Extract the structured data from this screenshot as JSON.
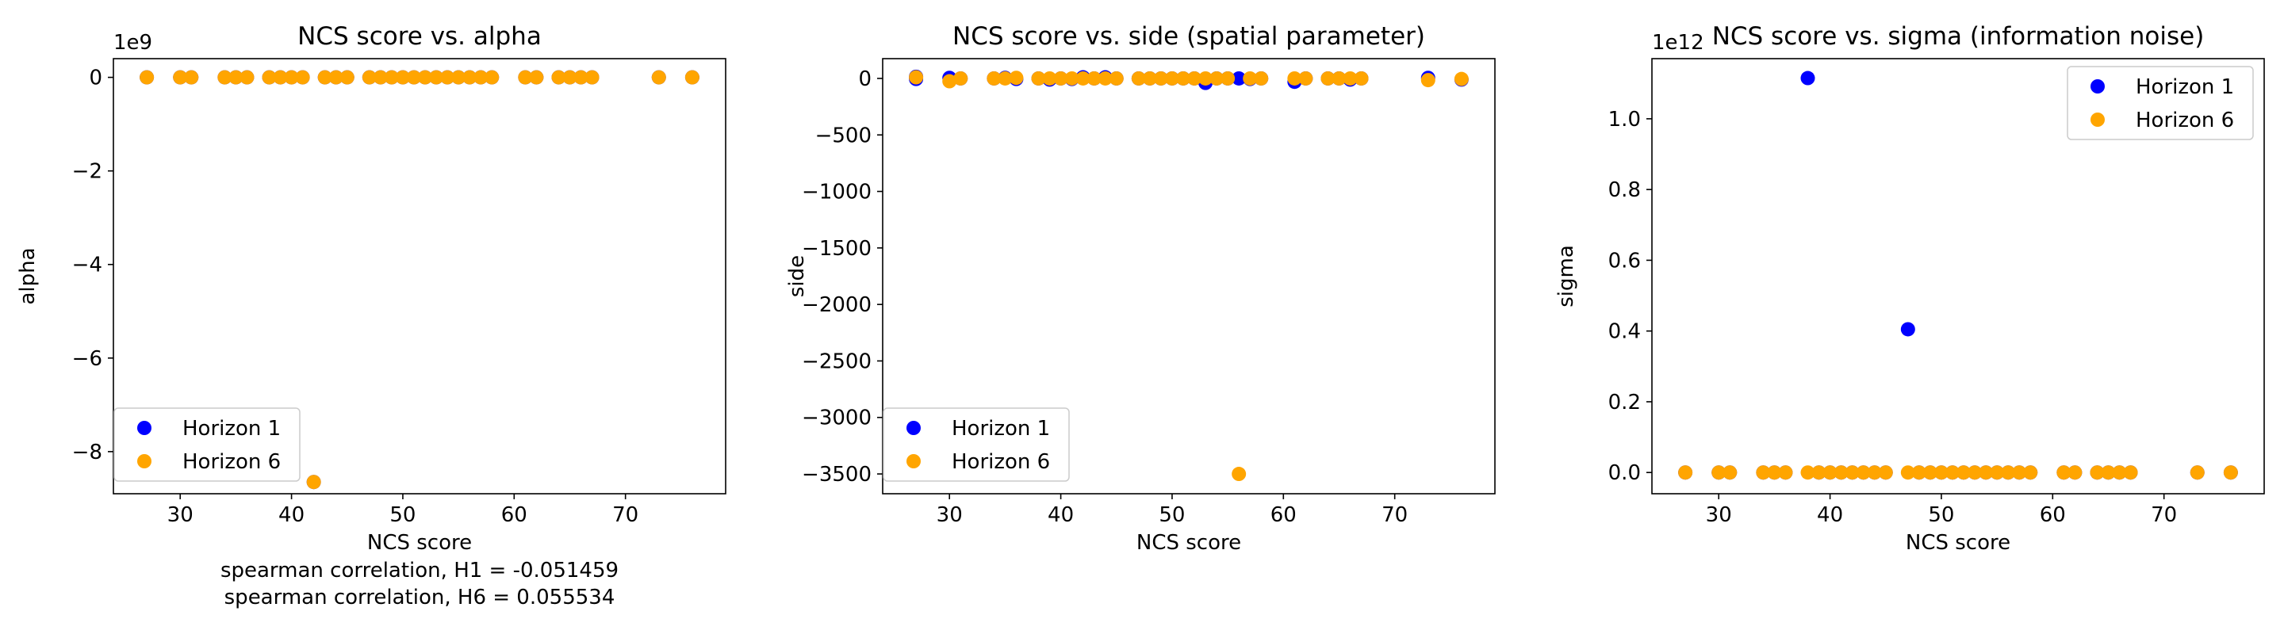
{
  "legend_labels": [
    "Horizon 1",
    "Horizon 6"
  ],
  "colors": {
    "horizon1": "#0000ff",
    "horizon6": "#ffa500"
  },
  "chart_data": [
    {
      "type": "scatter",
      "title": "NCS score vs. alpha",
      "xlabel": "NCS score",
      "ylabel": "alpha",
      "footer_lines": [
        "spearman correlation, H1 = -0.051459",
        "spearman correlation, H6 = 0.055534"
      ],
      "offset_label": "1e9",
      "xlim": [
        24,
        79
      ],
      "ylim": [
        -8.9,
        0.4
      ],
      "xticks": [
        30,
        40,
        50,
        60,
        70
      ],
      "xtick_labels": [
        "30",
        "40",
        "50",
        "60",
        "70"
      ],
      "yticks": [
        0,
        -2,
        -4,
        -6,
        -8
      ],
      "ytick_labels": [
        "0",
        "−2",
        "−4",
        "−6",
        "−8"
      ],
      "legend": "lower-left",
      "grid": false,
      "series": [
        {
          "name": "Horizon 1",
          "points": [
            [
              27,
              0
            ],
            [
              30,
              0
            ],
            [
              31,
              0
            ],
            [
              34,
              0
            ],
            [
              35,
              0
            ],
            [
              36,
              0
            ],
            [
              38,
              0
            ],
            [
              39,
              0
            ],
            [
              40,
              0
            ],
            [
              41,
              0
            ],
            [
              42,
              -8.65
            ],
            [
              43,
              0
            ],
            [
              44,
              0
            ],
            [
              45,
              0
            ],
            [
              47,
              0
            ],
            [
              48,
              0
            ],
            [
              49,
              0
            ],
            [
              50,
              0
            ],
            [
              51,
              0
            ],
            [
              52,
              0
            ],
            [
              53,
              0
            ],
            [
              54,
              0
            ],
            [
              55,
              0
            ],
            [
              56,
              0
            ],
            [
              57,
              0
            ],
            [
              58,
              0
            ],
            [
              61,
              0
            ],
            [
              62,
              0
            ],
            [
              64,
              0
            ],
            [
              65,
              0
            ],
            [
              66,
              0
            ],
            [
              67,
              0
            ],
            [
              73,
              0
            ],
            [
              76,
              0
            ]
          ]
        },
        {
          "name": "Horizon 6",
          "points": [
            [
              27,
              0
            ],
            [
              30,
              0
            ],
            [
              31,
              0
            ],
            [
              34,
              0
            ],
            [
              35,
              0
            ],
            [
              36,
              0
            ],
            [
              38,
              0
            ],
            [
              39,
              0
            ],
            [
              40,
              0
            ],
            [
              41,
              0
            ],
            [
              42,
              -8.65
            ],
            [
              43,
              0
            ],
            [
              44,
              0
            ],
            [
              45,
              0
            ],
            [
              47,
              0
            ],
            [
              48,
              0
            ],
            [
              49,
              0
            ],
            [
              50,
              0
            ],
            [
              51,
              0
            ],
            [
              52,
              0
            ],
            [
              53,
              0
            ],
            [
              54,
              0
            ],
            [
              55,
              0
            ],
            [
              56,
              0
            ],
            [
              57,
              0
            ],
            [
              58,
              0
            ],
            [
              61,
              0
            ],
            [
              62,
              0
            ],
            [
              64,
              0
            ],
            [
              65,
              0
            ],
            [
              66,
              0
            ],
            [
              67,
              0
            ],
            [
              73,
              0
            ],
            [
              76,
              0
            ]
          ]
        }
      ]
    },
    {
      "type": "scatter",
      "title": "NCS score vs. side (spatial parameter)",
      "xlabel": "NCS score",
      "ylabel": "side",
      "xlim": [
        24,
        79
      ],
      "ylim": [
        -3675,
        175
      ],
      "xticks": [
        30,
        40,
        50,
        60,
        70
      ],
      "xtick_labels": [
        "30",
        "40",
        "50",
        "60",
        "70"
      ],
      "yticks": [
        0,
        -500,
        -1000,
        -1500,
        -2000,
        -2500,
        -3000,
        -3500
      ],
      "ytick_labels": [
        "0",
        "−500",
        "−1000",
        "−1500",
        "−2000",
        "−2500",
        "−3000",
        "−3500"
      ],
      "legend": "lower-left",
      "grid": false,
      "series": [
        {
          "name": "Horizon 1",
          "points": [
            [
              27,
              -5
            ],
            [
              27,
              15
            ],
            [
              30,
              5
            ],
            [
              31,
              0
            ],
            [
              34,
              0
            ],
            [
              35,
              5
            ],
            [
              36,
              -5
            ],
            [
              38,
              0
            ],
            [
              39,
              -10
            ],
            [
              40,
              0
            ],
            [
              41,
              -5
            ],
            [
              42,
              10
            ],
            [
              43,
              0
            ],
            [
              44,
              10
            ],
            [
              45,
              0
            ],
            [
              47,
              0
            ],
            [
              48,
              0
            ],
            [
              49,
              0
            ],
            [
              50,
              0
            ],
            [
              51,
              0
            ],
            [
              52,
              0
            ],
            [
              53,
              -40
            ],
            [
              54,
              0
            ],
            [
              55,
              0
            ],
            [
              56,
              0
            ],
            [
              57,
              -5
            ],
            [
              58,
              0
            ],
            [
              61,
              -30
            ],
            [
              62,
              0
            ],
            [
              64,
              0
            ],
            [
              65,
              0
            ],
            [
              66,
              -10
            ],
            [
              67,
              0
            ],
            [
              73,
              5
            ],
            [
              76,
              -10
            ]
          ]
        },
        {
          "name": "Horizon 6",
          "points": [
            [
              27,
              10
            ],
            [
              30,
              -25
            ],
            [
              31,
              0
            ],
            [
              34,
              0
            ],
            [
              35,
              0
            ],
            [
              36,
              5
            ],
            [
              38,
              0
            ],
            [
              39,
              0
            ],
            [
              40,
              0
            ],
            [
              41,
              0
            ],
            [
              42,
              0
            ],
            [
              43,
              0
            ],
            [
              44,
              0
            ],
            [
              45,
              0
            ],
            [
              47,
              0
            ],
            [
              48,
              0
            ],
            [
              49,
              0
            ],
            [
              50,
              0
            ],
            [
              51,
              0
            ],
            [
              52,
              0
            ],
            [
              53,
              0
            ],
            [
              54,
              0
            ],
            [
              55,
              0
            ],
            [
              56,
              -3500
            ],
            [
              57,
              0
            ],
            [
              58,
              0
            ],
            [
              61,
              0
            ],
            [
              62,
              0
            ],
            [
              64,
              0
            ],
            [
              65,
              0
            ],
            [
              66,
              0
            ],
            [
              67,
              0
            ],
            [
              73,
              -15
            ],
            [
              76,
              -5
            ]
          ]
        }
      ]
    },
    {
      "type": "scatter",
      "title": "NCS score vs. sigma (information noise)",
      "xlabel": "NCS score",
      "ylabel": "sigma",
      "offset_label": "1e12",
      "xlim": [
        24,
        79
      ],
      "ylim": [
        -0.06,
        1.17
      ],
      "xticks": [
        30,
        40,
        50,
        60,
        70
      ],
      "xtick_labels": [
        "30",
        "40",
        "50",
        "60",
        "70"
      ],
      "yticks": [
        0,
        0.2,
        0.4,
        0.6,
        0.8,
        1.0
      ],
      "ytick_labels": [
        "0.0",
        "0.2",
        "0.4",
        "0.6",
        "0.8",
        "1.0"
      ],
      "legend": "upper-right",
      "grid": false,
      "series": [
        {
          "name": "Horizon 1",
          "points": [
            [
              38,
              1.115
            ],
            [
              47,
              0.405
            ],
            [
              27,
              0
            ],
            [
              30,
              0
            ],
            [
              31,
              0
            ],
            [
              34,
              0
            ],
            [
              35,
              0
            ],
            [
              36,
              0
            ],
            [
              39,
              0
            ],
            [
              40,
              0
            ],
            [
              41,
              0
            ],
            [
              42,
              0
            ],
            [
              43,
              0
            ],
            [
              44,
              0
            ],
            [
              45,
              0
            ],
            [
              48,
              0
            ],
            [
              49,
              0
            ],
            [
              50,
              0
            ],
            [
              51,
              0
            ],
            [
              52,
              0
            ],
            [
              53,
              0
            ],
            [
              54,
              0
            ],
            [
              55,
              0
            ],
            [
              56,
              0
            ],
            [
              57,
              0
            ],
            [
              58,
              0
            ],
            [
              61,
              0
            ],
            [
              62,
              0
            ],
            [
              64,
              0
            ],
            [
              65,
              0
            ],
            [
              66,
              0
            ],
            [
              67,
              0
            ],
            [
              73,
              0
            ],
            [
              76,
              0
            ]
          ]
        },
        {
          "name": "Horizon 6",
          "points": [
            [
              27,
              0
            ],
            [
              30,
              0
            ],
            [
              31,
              0
            ],
            [
              34,
              0
            ],
            [
              35,
              0
            ],
            [
              36,
              0
            ],
            [
              38,
              0
            ],
            [
              39,
              0
            ],
            [
              40,
              0
            ],
            [
              41,
              0
            ],
            [
              42,
              0
            ],
            [
              43,
              0
            ],
            [
              44,
              0
            ],
            [
              45,
              0
            ],
            [
              47,
              0
            ],
            [
              48,
              0
            ],
            [
              49,
              0
            ],
            [
              50,
              0
            ],
            [
              51,
              0
            ],
            [
              52,
              0
            ],
            [
              53,
              0
            ],
            [
              54,
              0
            ],
            [
              55,
              0
            ],
            [
              56,
              0
            ],
            [
              57,
              0
            ],
            [
              58,
              0
            ],
            [
              61,
              0
            ],
            [
              62,
              0
            ],
            [
              64,
              0
            ],
            [
              65,
              0
            ],
            [
              66,
              0
            ],
            [
              67,
              0
            ],
            [
              73,
              0
            ],
            [
              76,
              0
            ]
          ]
        }
      ]
    }
  ]
}
